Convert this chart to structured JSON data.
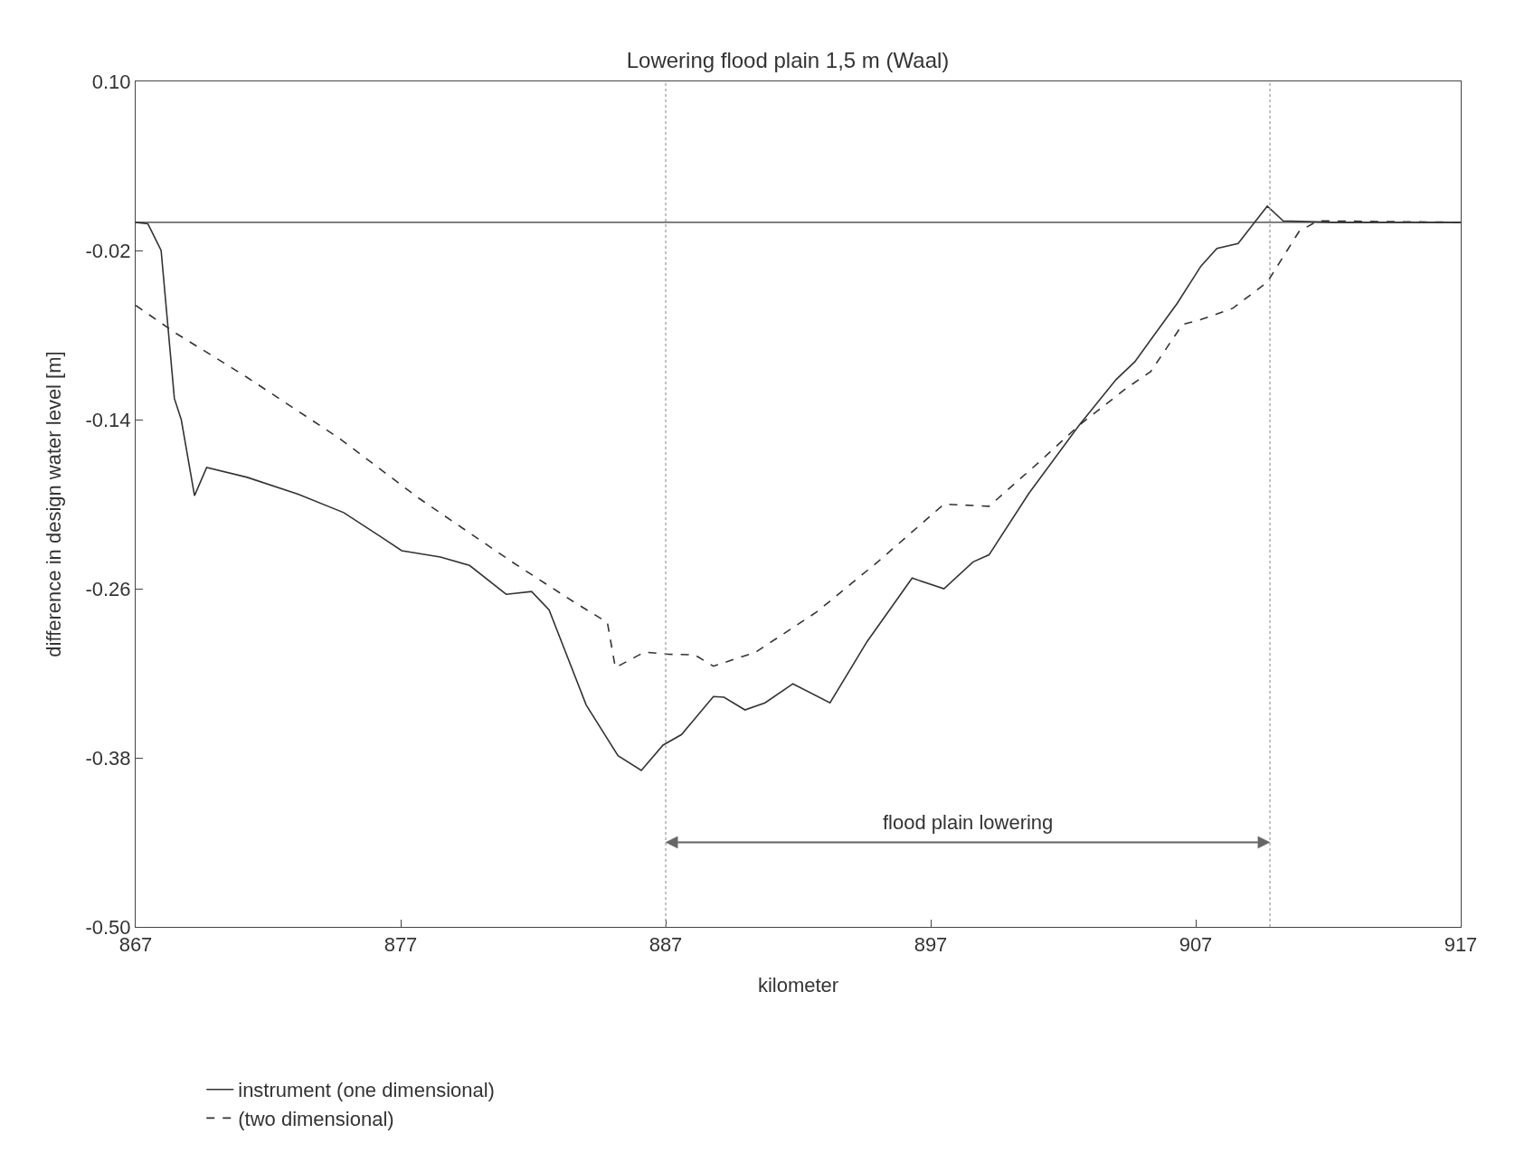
{
  "chart_data": {
    "type": "line",
    "title": "Lowering flood plain 1,5 m (Waal)",
    "xlabel": "kilometer",
    "ylabel": "difference in design water level [m]",
    "xlim": [
      867,
      917
    ],
    "xticks": [
      867,
      877,
      887,
      897,
      907,
      917
    ],
    "ylim": [
      -0.5,
      0.1
    ],
    "yticks": [
      {
        "value": -0.5,
        "label": "-0.50"
      },
      -0.38,
      -0.26,
      -0.14,
      -0.02,
      {
        "value": 0.1,
        "label": "0.10"
      }
    ],
    "legend": "bottom",
    "marker": "none",
    "ref_lines": [
      {
        "axis": "y",
        "value": 0,
        "color": "#333333",
        "line_style": "solid"
      },
      {
        "axis": "x",
        "value": 887,
        "color": "#999999",
        "line_style": "dotted"
      },
      {
        "axis": "x",
        "value": 909.8,
        "color": "#999999",
        "line_style": "dotted"
      }
    ],
    "annotations": [
      "flood plain lowering"
    ],
    "series": [
      {
        "name": "instrument (one dimensional)",
        "color": "#333333",
        "line_style": "solid",
        "x": [
          867,
          867.46,
          867.96,
          868.46,
          868.72,
          869.22,
          869.68,
          871.21,
          873.13,
          874.85,
          876.2,
          877.04,
          878.5,
          879.6,
          880.98,
          881.94,
          882.6,
          884.0,
          885.2,
          886.08,
          886.9,
          887.6,
          888.8,
          889.2,
          889.99,
          890.75,
          891.8,
          893.2,
          894.6,
          896.3,
          897.5,
          898.6,
          899.2,
          900.7,
          902.6,
          904.0,
          904.7,
          906.3,
          907.2,
          907.8,
          908.6,
          909.7,
          910.3,
          912.2,
          917
        ],
        "values": [
          0.0,
          -0.001,
          -0.02,
          -0.125,
          -0.14,
          -0.194,
          -0.174,
          -0.181,
          -0.193,
          -0.206,
          -0.2225,
          -0.233,
          -0.2375,
          -0.2435,
          -0.264,
          -0.262,
          -0.275,
          -0.3425,
          -0.3785,
          -0.389,
          -0.371,
          -0.3635,
          -0.3365,
          -0.337,
          -0.346,
          -0.341,
          -0.3275,
          -0.341,
          -0.2975,
          -0.2525,
          -0.26,
          -0.241,
          -0.236,
          -0.1925,
          -0.144,
          -0.1115,
          -0.099,
          -0.0575,
          -0.031,
          -0.0185,
          -0.015,
          0.0115,
          0.001,
          0.0,
          0.0
        ]
      },
      {
        "name": "(two dimensional)",
        "color": "#333333",
        "line_style": "dashed",
        "x": [
          867,
          868.5,
          871.2,
          874.7,
          877.7,
          881.2,
          883.5,
          884.8,
          885.1,
          886.2,
          887.1,
          888.1,
          888.8,
          890.4,
          892.7,
          895.0,
          897.5,
          899.2,
          901.1,
          902.6,
          904.4,
          905.3,
          906.5,
          907.2,
          908.4,
          909.7,
          910.9,
          911.6,
          917
        ],
        "values": [
          -0.059,
          -0.0785,
          -0.11,
          -0.1535,
          -0.196,
          -0.241,
          -0.269,
          -0.284,
          -0.316,
          -0.305,
          -0.3065,
          -0.307,
          -0.315,
          -0.305,
          -0.2765,
          -0.241,
          -0.2,
          -0.2015,
          -0.17,
          -0.144,
          -0.1175,
          -0.106,
          -0.0725,
          -0.069,
          -0.061,
          -0.0425,
          -0.0065,
          0.001,
          0.0
        ]
      }
    ]
  }
}
